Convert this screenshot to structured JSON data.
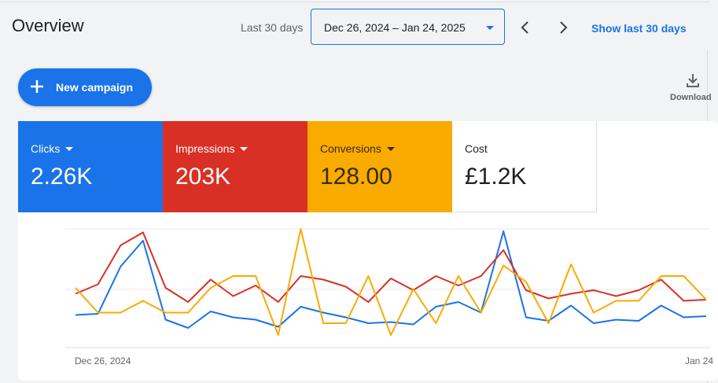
{
  "header": {
    "title": "Overview",
    "range_label": "Last 30 days",
    "date_range": "Dec 26, 2024 – Jan 24, 2025",
    "show_last_label": "Show last 30 days"
  },
  "actions": {
    "new_campaign_label": "New campaign",
    "download_label": "Download"
  },
  "metrics": [
    {
      "name": "Clicks",
      "value": "2.26K",
      "color": "#1a73e8",
      "dropdown": true
    },
    {
      "name": "Impressions",
      "value": "203K",
      "color": "#d93025",
      "dropdown": true
    },
    {
      "name": "Conversions",
      "value": "128.00",
      "color": "#f9ab00",
      "dropdown": true
    },
    {
      "name": "Cost",
      "value": "£1.2K",
      "color": "#ffffff",
      "dropdown": false
    }
  ],
  "chart_data": {
    "type": "line",
    "x_start_label": "Dec 26, 2024",
    "x_end_label": "Jan 24",
    "y_axis_labels_shown": false,
    "grid": true,
    "note_on_scale": "Each series is drawn on its own normalized scale (0 = bottom, 1 = top of plot)",
    "series": [
      {
        "name": "Clicks",
        "color": "#1a73e8",
        "values": [
          0.27,
          0.28,
          0.68,
          0.9,
          0.23,
          0.16,
          0.3,
          0.25,
          0.23,
          0.17,
          0.34,
          0.29,
          0.25,
          0.2,
          0.21,
          0.19,
          0.34,
          0.38,
          0.29,
          0.98,
          0.25,
          0.22,
          0.35,
          0.2,
          0.23,
          0.22,
          0.35,
          0.25,
          0.26
        ]
      },
      {
        "name": "Impressions",
        "color": "#d93025",
        "values": [
          0.45,
          0.53,
          0.86,
          0.97,
          0.5,
          0.38,
          0.57,
          0.43,
          0.52,
          0.38,
          0.6,
          0.57,
          0.51,
          0.38,
          0.58,
          0.48,
          0.6,
          0.52,
          0.6,
          0.82,
          0.48,
          0.41,
          0.45,
          0.48,
          0.43,
          0.48,
          0.57,
          0.39,
          0.4
        ]
      },
      {
        "name": "Conversions",
        "color": "#f9ab00",
        "values": [
          0.5,
          0.29,
          0.29,
          0.39,
          0.29,
          0.29,
          0.5,
          0.6,
          0.6,
          0.1,
          1.0,
          0.2,
          0.2,
          0.6,
          0.1,
          0.49,
          0.2,
          0.6,
          0.29,
          0.69,
          0.55,
          0.2,
          0.7,
          0.29,
          0.39,
          0.39,
          0.6,
          0.6,
          0.4
        ]
      }
    ]
  }
}
